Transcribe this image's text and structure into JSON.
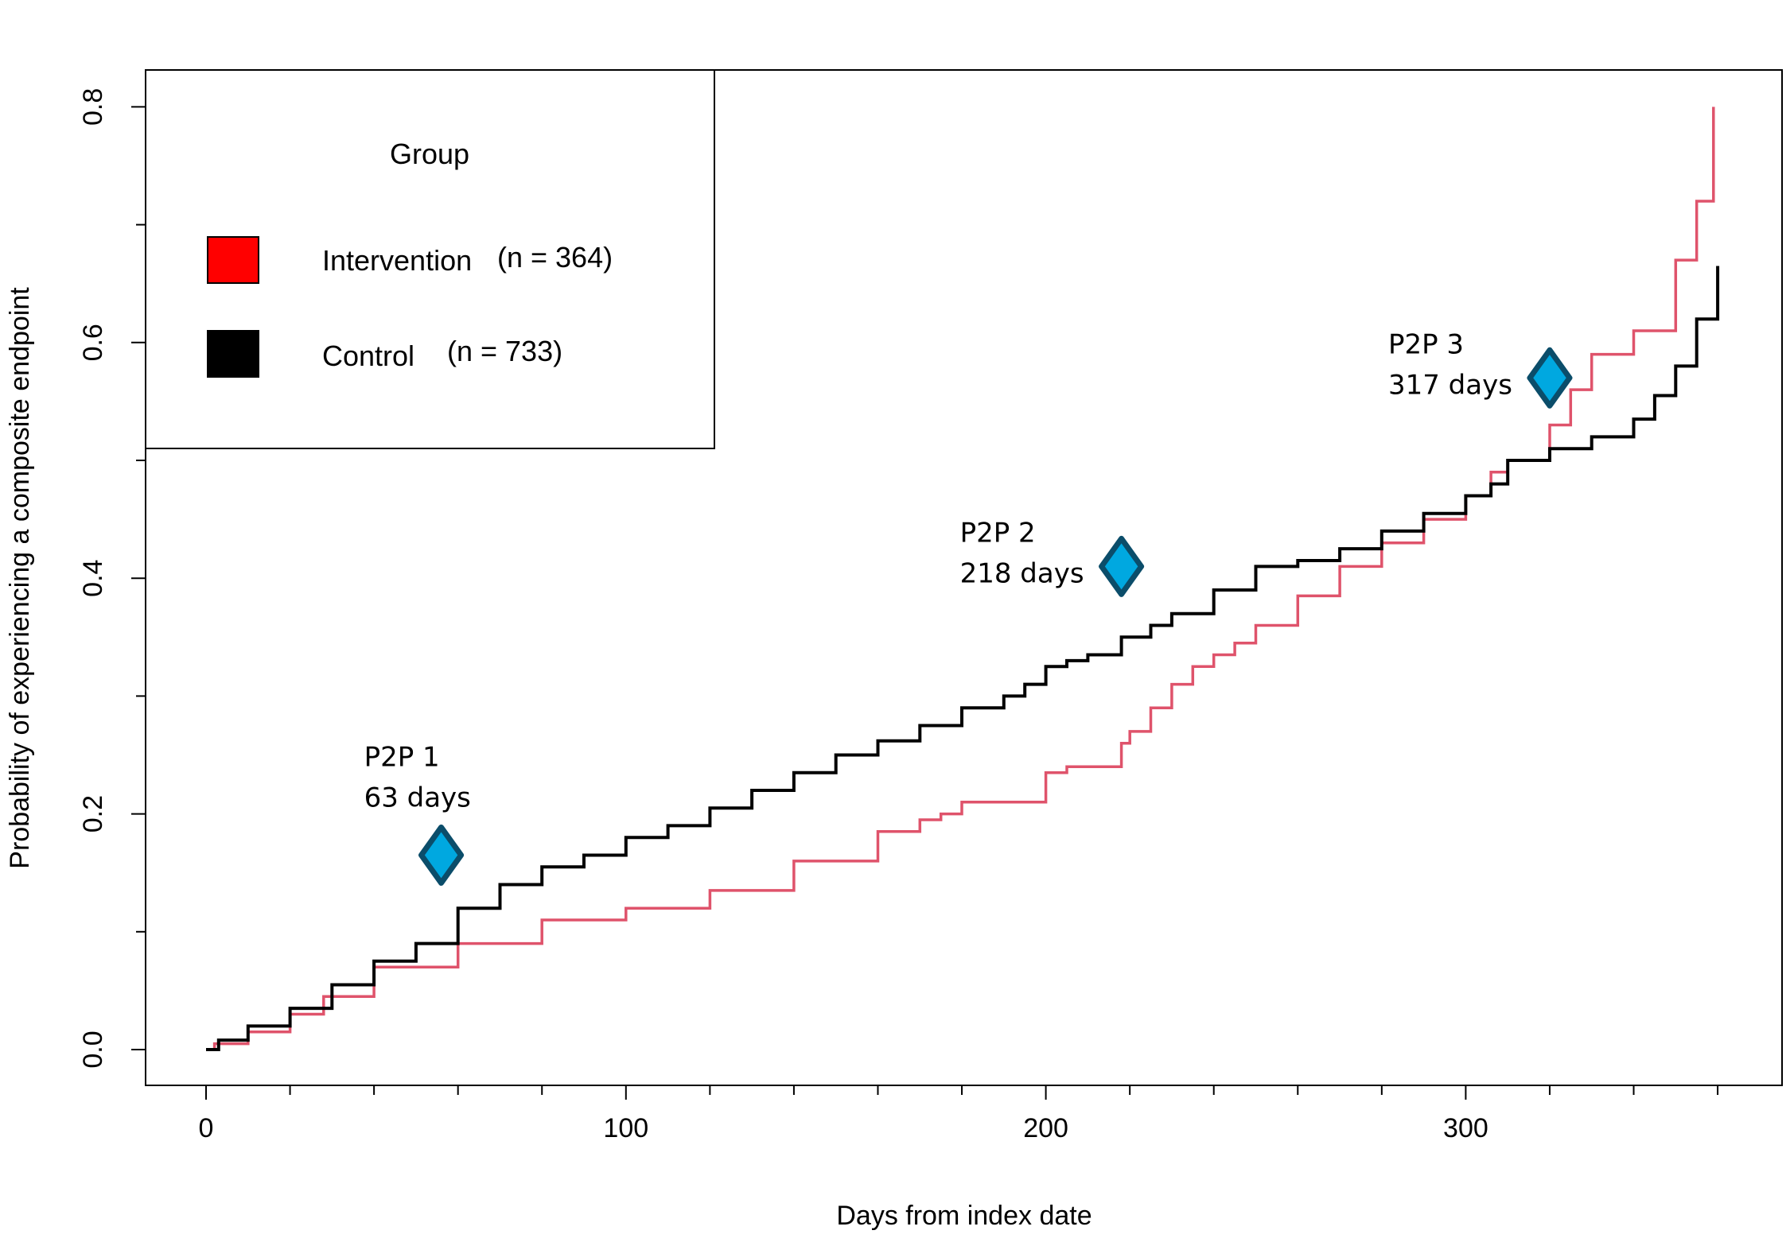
{
  "chart_data": {
    "type": "line",
    "title": "",
    "xlabel": "Days from index date",
    "ylabel": "Probability of experiencing a composite endpoint",
    "xlim": [
      0,
      360
    ],
    "ylim": [
      0,
      0.8
    ],
    "x_ticks": [
      0,
      100,
      200,
      300
    ],
    "x_tick_labels": [
      "0",
      "100",
      "200",
      "300"
    ],
    "x_minor_ticks": [
      20,
      40,
      60,
      80,
      120,
      140,
      160,
      180,
      220,
      240,
      260,
      280,
      320,
      340,
      360
    ],
    "y_ticks": [
      0.0,
      0.2,
      0.4,
      0.6,
      0.8
    ],
    "y_tick_labels": [
      "0.0",
      "0.2",
      "0.4",
      "0.6",
      "0.8"
    ],
    "y_minor_ticks": [
      0.1,
      0.3,
      0.5,
      0.7
    ],
    "legend": {
      "title": "Group",
      "position": "top-left",
      "entries": [
        {
          "label": "Intervention",
          "count": "(n = 364)",
          "color": "#ff0000"
        },
        {
          "label": "Control",
          "count": "(n = 733)",
          "color": "#000000"
        }
      ]
    },
    "series": [
      {
        "name": "Intervention",
        "color": "#df536b",
        "step": true,
        "x": [
          0,
          2,
          10,
          20,
          28,
          40,
          60,
          80,
          100,
          120,
          140,
          160,
          170,
          175,
          180,
          200,
          205,
          210,
          215,
          218,
          220,
          225,
          230,
          235,
          240,
          245,
          250,
          260,
          270,
          280,
          290,
          300,
          306,
          310,
          320,
          325,
          330,
          340,
          350,
          355,
          359
        ],
        "values": [
          0.0,
          0.005,
          0.015,
          0.03,
          0.045,
          0.07,
          0.09,
          0.11,
          0.12,
          0.135,
          0.16,
          0.185,
          0.195,
          0.2,
          0.21,
          0.235,
          0.24,
          0.24,
          0.24,
          0.26,
          0.27,
          0.29,
          0.31,
          0.325,
          0.335,
          0.345,
          0.36,
          0.385,
          0.41,
          0.43,
          0.45,
          0.47,
          0.49,
          0.5,
          0.53,
          0.56,
          0.59,
          0.61,
          0.67,
          0.72,
          0.8
        ]
      },
      {
        "name": "Control",
        "color": "#000000",
        "step": true,
        "x": [
          0,
          3,
          10,
          20,
          30,
          40,
          50,
          60,
          70,
          80,
          90,
          100,
          110,
          120,
          130,
          140,
          150,
          160,
          170,
          180,
          190,
          195,
          200,
          205,
          210,
          218,
          225,
          230,
          240,
          250,
          260,
          270,
          280,
          290,
          300,
          306,
          310,
          320,
          330,
          340,
          345,
          350,
          355,
          360
        ],
        "values": [
          0.0,
          0.008,
          0.02,
          0.035,
          0.055,
          0.075,
          0.09,
          0.12,
          0.14,
          0.155,
          0.165,
          0.18,
          0.19,
          0.205,
          0.22,
          0.235,
          0.25,
          0.262,
          0.275,
          0.29,
          0.3,
          0.31,
          0.325,
          0.33,
          0.335,
          0.35,
          0.36,
          0.37,
          0.39,
          0.41,
          0.415,
          0.425,
          0.44,
          0.455,
          0.47,
          0.48,
          0.5,
          0.51,
          0.52,
          0.535,
          0.555,
          0.58,
          0.62,
          0.665
        ]
      }
    ],
    "annotations": [
      {
        "line1": "P2P 1",
        "line2": "63 days",
        "marker_x": 56,
        "marker_y": 0.165
      },
      {
        "line1": "P2P 2",
        "line2": "218 days",
        "marker_x": 218,
        "marker_y": 0.41
      },
      {
        "line1": "P2P 3",
        "line2": "317 days",
        "marker_x": 320,
        "marker_y": 0.57
      }
    ],
    "marker_color": "#00a8e0",
    "marker_edge_color": "#0b4d6a"
  }
}
